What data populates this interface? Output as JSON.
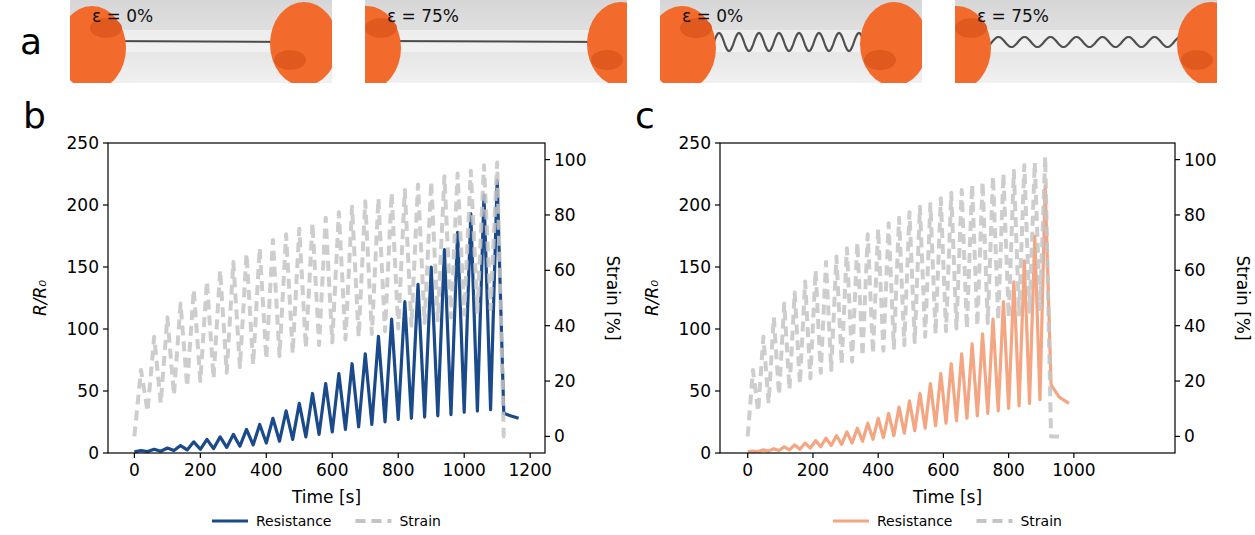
{
  "photo_panel": {
    "letter": "a",
    "photos": [
      {
        "label": "ε = 0%"
      },
      {
        "label": "ε = 75%"
      },
      {
        "label": "ε = 0%"
      },
      {
        "label": "ε = 75%"
      }
    ]
  },
  "chart_data": [
    {
      "type": "line",
      "panel_label": "b",
      "x_label": "Time [s]",
      "y_label": "R/R₀",
      "y2_label": "Strain [%]",
      "x": [
        0,
        20,
        40,
        60,
        80,
        100,
        120,
        140,
        160,
        180,
        200,
        220,
        240,
        260,
        280,
        300,
        320,
        340,
        360,
        380,
        400,
        420,
        440,
        460,
        480,
        500,
        520,
        540,
        560,
        580,
        600,
        620,
        640,
        660,
        680,
        700,
        720,
        740,
        760,
        780,
        800,
        820,
        840,
        860,
        880,
        900,
        920,
        940,
        960,
        980,
        1000,
        1020,
        1040,
        1060,
        1080,
        1100,
        1120,
        1140,
        1165
      ],
      "xlim": [
        -80,
        1245
      ],
      "xticks": [
        0,
        200,
        400,
        600,
        800,
        1000,
        1200
      ],
      "ylim": [
        0,
        250
      ],
      "yticks": [
        0,
        50,
        100,
        150,
        200,
        250
      ],
      "y2lim": [
        -6,
        106
      ],
      "y2ticks": [
        0,
        20,
        40,
        60,
        80,
        100
      ],
      "grid": false,
      "legend": "bottom",
      "series": [
        {
          "name": "Resistance",
          "color": "#1b4a8a",
          "line_style": "solid",
          "values": [
            1,
            2,
            1.2,
            3,
            1.4,
            4,
            2,
            6,
            2.5,
            9,
            3,
            11,
            3.5,
            13,
            4.5,
            15,
            5.5,
            19,
            6.5,
            23,
            8,
            28,
            9.5,
            34,
            11,
            40,
            13,
            48,
            15,
            56,
            17,
            64,
            19,
            72,
            21,
            80,
            23,
            94,
            25,
            108,
            27,
            122,
            28,
            136,
            29,
            150,
            30,
            164,
            31,
            178,
            33,
            193,
            34,
            208,
            35,
            220,
            32,
            30,
            28
          ]
        },
        {
          "name": "Strain",
          "color": "#c4c4c4",
          "line_style": "dashed",
          "axis": "y2",
          "values": [
            0,
            24,
            9,
            36,
            12,
            43,
            15,
            48,
            18,
            53,
            20,
            56,
            21,
            60,
            23,
            63,
            25,
            66,
            26,
            68,
            28,
            71,
            29,
            73,
            30,
            75,
            32,
            77,
            33,
            79,
            34,
            81,
            35,
            83,
            36,
            85,
            37,
            86,
            38,
            88,
            39,
            89,
            40,
            91,
            41,
            92,
            42,
            94,
            43,
            95,
            44,
            96,
            45,
            98,
            46,
            99,
            0,
            0,
            null
          ]
        }
      ]
    },
    {
      "type": "line",
      "panel_label": "c",
      "x_label": "Time [s]",
      "y_label": "R/R₀",
      "y2_label": "Strain [%]",
      "x": [
        0,
        16,
        32,
        48,
        64,
        80,
        96,
        112,
        128,
        144,
        160,
        176,
        192,
        208,
        224,
        240,
        256,
        272,
        288,
        304,
        320,
        336,
        352,
        368,
        384,
        400,
        416,
        432,
        448,
        464,
        480,
        496,
        512,
        528,
        544,
        560,
        576,
        592,
        608,
        624,
        640,
        656,
        672,
        688,
        704,
        720,
        736,
        752,
        768,
        784,
        800,
        816,
        832,
        848,
        864,
        880,
        896,
        912,
        930,
        955,
        985
      ],
      "xlim": [
        -85,
        1310
      ],
      "xticks": [
        0,
        200,
        400,
        600,
        800,
        1000
      ],
      "ylim": [
        0,
        250
      ],
      "yticks": [
        0,
        50,
        100,
        150,
        200,
        250
      ],
      "y2lim": [
        -6,
        106
      ],
      "y2ticks": [
        0,
        20,
        40,
        60,
        80,
        100
      ],
      "grid": false,
      "legend": "bottom",
      "series": [
        {
          "name": "Resistance",
          "color": "#f4a582",
          "line_style": "solid",
          "values": [
            1,
            1.5,
            1.2,
            2.5,
            1.5,
            3.5,
            2,
            5,
            2.5,
            6.5,
            3,
            8,
            4,
            10,
            5,
            12,
            6,
            14,
            7,
            17,
            8,
            20,
            9.5,
            24,
            11,
            28,
            12.5,
            32,
            14,
            37,
            16,
            42,
            18,
            48,
            20,
            56,
            22,
            64,
            24,
            72,
            26,
            80,
            28,
            88,
            30,
            96,
            32,
            108,
            34,
            122,
            36,
            138,
            38,
            155,
            40,
            175,
            43,
            215,
            55,
            45,
            40
          ]
        },
        {
          "name": "Strain",
          "color": "#c4c4c4",
          "line_style": "dashed",
          "axis": "y2",
          "values": [
            0,
            24,
            9,
            36,
            12,
            43,
            15,
            48,
            17,
            52,
            19,
            56,
            21,
            60,
            23,
            63,
            24,
            65,
            26,
            68,
            27,
            70,
            29,
            73,
            30,
            75,
            31,
            77,
            32,
            79,
            33,
            81,
            34,
            83,
            36,
            84,
            37,
            86,
            38,
            88,
            39,
            89,
            39,
            91,
            40,
            92,
            41,
            94,
            42,
            95,
            43,
            96,
            44,
            98,
            45,
            99,
            46,
            101,
            0,
            0,
            null
          ]
        }
      ]
    }
  ]
}
